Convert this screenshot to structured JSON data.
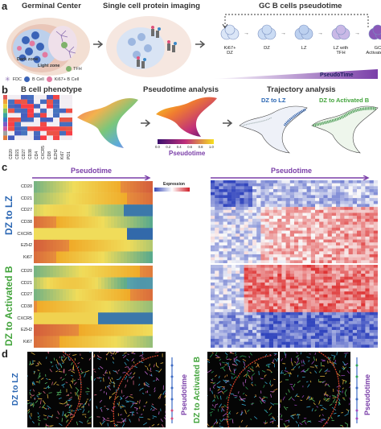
{
  "panel_a": {
    "letter": "a",
    "germinal_center_title": "Germinal Center",
    "imaging_title": "Single cell protein imaging",
    "pseudotime_title": "GC B cells pseudotime",
    "dark_zone": "Dark zone",
    "light_zone": "Light zone",
    "legend": {
      "tfh": "TFH",
      "fdc": "FDC",
      "bcell": "B Cell",
      "ki67": "Ki67+ B Cell"
    },
    "stages": [
      "Ki67+\nDZ",
      "DZ",
      "LZ",
      "LZ with\nTFH",
      "GC\nActivated B"
    ],
    "pseudotime_axis": "PseudoTime"
  },
  "panel_b": {
    "letter": "b",
    "phenotype_title": "B cell phenotype",
    "pseudotime_title": "Pseudotime analysis",
    "trajectory_title": "Trajectory analysis",
    "traj_left": "DZ to LZ",
    "traj_right": "DZ to Activated B",
    "markers": [
      "CD20",
      "CD21",
      "CD27",
      "CD38",
      "CD4",
      "CXCR5",
      "CD8",
      "EZH2",
      "Ki67",
      "PD1"
    ],
    "colorbar_ticks": [
      "0.0",
      "0.2",
      "0.4",
      "0.6",
      "0.8",
      "1.0"
    ],
    "colorbar_label": "Pseudotime"
  },
  "panel_c": {
    "letter": "c",
    "pseudotime_left": "Pseudotime",
    "pseudotime_right": "Pseudotime",
    "expression_label": "Expression",
    "group_top": "DZ to LZ",
    "group_bottom": "DZ to Activated B",
    "rows": [
      "CD20",
      "CD21",
      "CD27",
      "CD38",
      "CXCR5",
      "EZH2",
      "Ki67"
    ]
  },
  "panel_d": {
    "letter": "d",
    "group_left": "DZ to LZ",
    "group_right": "DZ to Activated B",
    "pseudotime": "Pseudotime"
  },
  "colors": {
    "purple": "#7a3ea8",
    "blue": "#2a66b3",
    "green": "#43a43c",
    "dark_blue": "#1a4fa0"
  }
}
